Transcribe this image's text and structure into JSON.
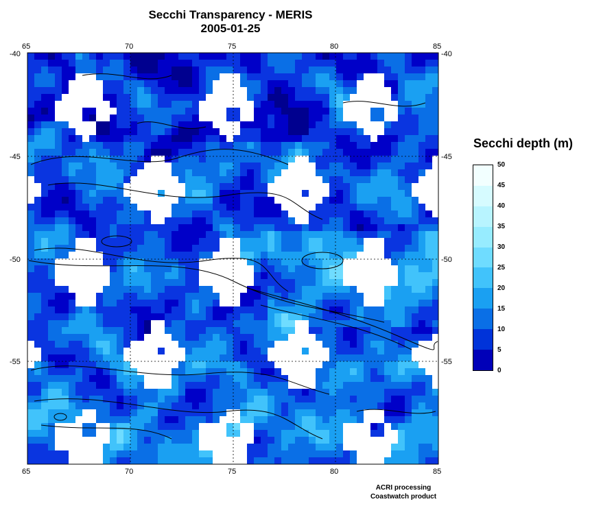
{
  "title": "Secchi Transparency - MERIS",
  "date": "2005-01-25",
  "x_ticks": [
    "65",
    "70",
    "75",
    "80",
    "85"
  ],
  "y_ticks": [
    "-40",
    "-45",
    "-50",
    "-55"
  ],
  "legend": {
    "title": "Secchi depth (m)",
    "labels": [
      "50",
      "45",
      "40",
      "35",
      "30",
      "25",
      "20",
      "15",
      "10",
      "5",
      "0"
    ],
    "colors": [
      "#f2ffff",
      "#d6fbff",
      "#b8f4ff",
      "#97ecff",
      "#6fdcff",
      "#41c3fb",
      "#1aa0f2",
      "#0a6fe6",
      "#0033d9",
      "#0000b8",
      "#000088"
    ]
  },
  "credits": {
    "line1": "ACRI processing",
    "line2": "Coastwatch product"
  },
  "map": {
    "lon_range": [
      65,
      85
    ],
    "lat_range": [
      -60,
      -40
    ],
    "grid": "dashed"
  }
}
